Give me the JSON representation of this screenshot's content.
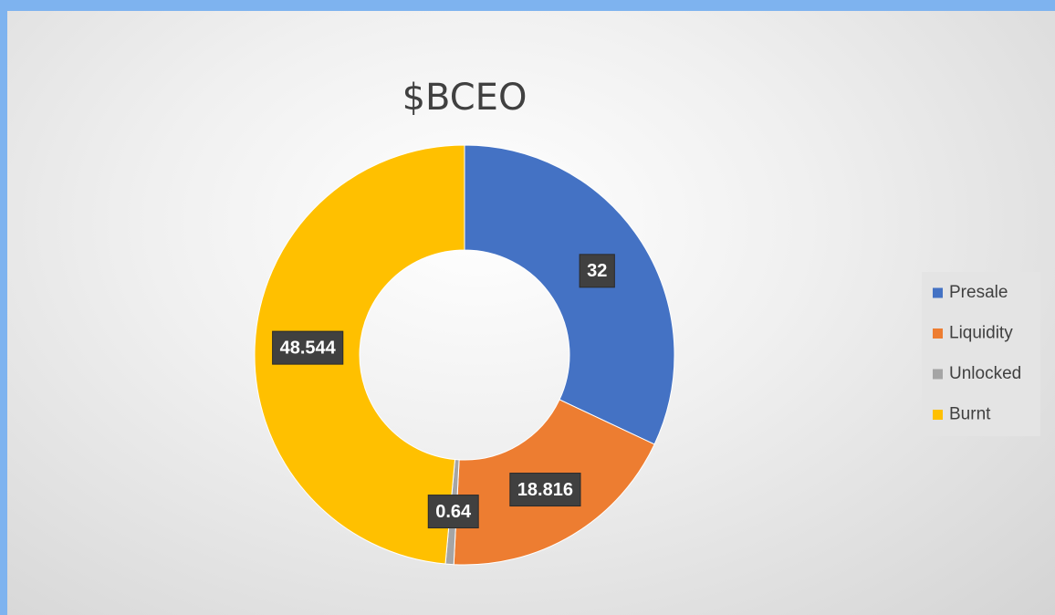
{
  "chart_data": {
    "type": "donut",
    "title": "$BCEO",
    "categories": [
      "Presale",
      "Liquidity",
      "Unlocked",
      "Burnt"
    ],
    "values": [
      32,
      18.816,
      0.64,
      48.544
    ],
    "colors": [
      "#4472c4",
      "#ed7d31",
      "#a5a5a5",
      "#ffc000"
    ],
    "legend": "right"
  }
}
